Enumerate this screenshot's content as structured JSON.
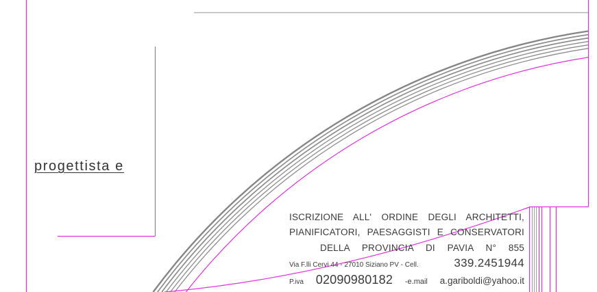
{
  "sheet": {
    "designer_label": "progettista e",
    "colors": {
      "border": "#e22ee0",
      "arc": "#8c8c8c",
      "line": "#b4b4b4",
      "text": "#3a3a3a"
    }
  },
  "title_block": {
    "registration_line_1": "ISCRIZIONE ALL' ORDINE DEGLI ARCHITETTI,",
    "registration_line_2": "PIANIFICATORI, PAESAGGISTI E CONSERVATORI",
    "registration_line_3": "DELLA PROVINCIA DI PAVIA N° 855",
    "address": "Via F.lli Cervi 44 - 27010 Siziano PV - Cell.",
    "phone": "339.2451944",
    "vat_label": "P.iva",
    "vat_number": "02090980182",
    "email_label": "-e.mail",
    "email": "a.gariboldi@yahoo.it"
  }
}
